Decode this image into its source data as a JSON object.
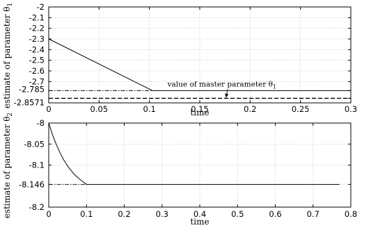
{
  "chart_data": [
    {
      "type": "line",
      "xlabel": "time",
      "ylabel": "estimate of parameter θ1",
      "ylabel_main": "estimate of parameter θ",
      "ylabel_sub": "1",
      "xlim": [
        0,
        0.3
      ],
      "ylim": [
        -2.9,
        -2.0
      ],
      "grid": true,
      "xticks": [
        "0",
        "0.05",
        "0.1",
        "0.15",
        "0.2",
        "0.25",
        "0.3"
      ],
      "xtick_values": [
        0,
        0.05,
        0.1,
        0.15,
        0.2,
        0.25,
        0.3
      ],
      "yticks": [
        "-2",
        "-2.1",
        "-2.2",
        "-2.3",
        "-2.4",
        "-2.5",
        "-2.6",
        "-2.7",
        "-2.785",
        "-2.8571"
      ],
      "ytick_values": [
        -2.0,
        -2.1,
        -2.2,
        -2.3,
        -2.4,
        -2.5,
        -2.6,
        -2.7,
        -2.785,
        -2.8571
      ],
      "series": [
        {
          "style": "solid",
          "x": [
            0,
            0.103,
            0.3
          ],
          "y": [
            -2.3,
            -2.785,
            -2.785
          ]
        },
        {
          "style": "dashed",
          "x": [
            0,
            0.3
          ],
          "y": [
            -2.8571,
            -2.8571
          ]
        },
        {
          "style": "dashdot",
          "x": [
            0,
            0.103
          ],
          "y": [
            -2.785,
            -2.785
          ]
        }
      ],
      "annotation": {
        "text": "value of master parameter θ1",
        "main": "value of master parameter θ",
        "sub": "1",
        "points_to": {
          "x": 0.172,
          "y": -2.8571
        }
      }
    },
    {
      "type": "line",
      "xlabel": "time",
      "ylabel": "estimate of parameter θ2",
      "ylabel_main": "estimate of parameter θ",
      "ylabel_sub": "2",
      "xlim": [
        0,
        0.8
      ],
      "ylim": [
        -8.2,
        -8.0
      ],
      "grid": true,
      "xticks": [
        "0",
        "0.1",
        "0.2",
        "0.3",
        "0.4",
        "0.5",
        "0.6",
        "0.7",
        "0.8"
      ],
      "xtick_values": [
        0,
        0.1,
        0.2,
        0.3,
        0.4,
        0.5,
        0.6,
        0.7,
        0.8
      ],
      "yticks": [
        "-8",
        "-8.05",
        "-8.1",
        "-8.146",
        "-8.2"
      ],
      "ytick_values": [
        -8.0,
        -8.05,
        -8.1,
        -8.146,
        -8.2
      ],
      "series": [
        {
          "style": "solid",
          "x": [
            0,
            0.01,
            0.02,
            0.03,
            0.04,
            0.05,
            0.06,
            0.07,
            0.08,
            0.09,
            0.1,
            0.77
          ],
          "y": [
            -8.0,
            -8.028,
            -8.051,
            -8.071,
            -8.088,
            -8.102,
            -8.114,
            -8.124,
            -8.132,
            -8.139,
            -8.146,
            -8.146
          ]
        },
        {
          "style": "dashdot",
          "x": [
            0,
            0.1
          ],
          "y": [
            -8.146,
            -8.146
          ]
        }
      ]
    }
  ]
}
